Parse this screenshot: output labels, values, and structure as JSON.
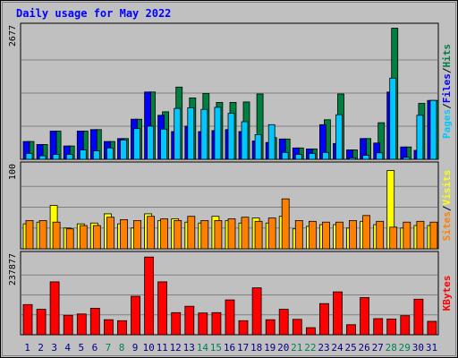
{
  "chart_data": {
    "type": "bar",
    "title": "Daily usage for May 2022",
    "categories": [
      "1",
      "2",
      "3",
      "4",
      "5",
      "6",
      "7",
      "8",
      "9",
      "10",
      "11",
      "12",
      "13",
      "14",
      "15",
      "16",
      "17",
      "18",
      "19",
      "20",
      "21",
      "22",
      "23",
      "24",
      "25",
      "26",
      "27",
      "28",
      "29",
      "30",
      "31"
    ],
    "weekend_days": [
      "7",
      "8",
      "14",
      "15",
      "21",
      "22",
      "28",
      "29"
    ],
    "grid": true,
    "panels": [
      {
        "name": "hits-files-pages",
        "ymax_label": "2677",
        "ylim": [
          0,
          2677
        ],
        "right_labels": [
          "Pages",
          "Files",
          "Hits"
        ],
        "series": [
          {
            "name": "Hits",
            "color": "#008040",
            "values": [
              360,
              300,
              570,
              270,
              570,
              600,
              360,
              420,
              810,
              1360,
              960,
              1460,
              1240,
              1330,
              1150,
              1150,
              1160,
              1320,
              440,
              410,
              230,
              210,
              800,
              1320,
              190,
              420,
              740,
              2650,
              250,
              1130,
              1190
            ]
          },
          {
            "name": "Files",
            "color": "#0000ff",
            "values": [
              360,
              300,
              570,
              270,
              570,
              600,
              360,
              420,
              810,
              1360,
              890,
              560,
              670,
              560,
              580,
              600,
              560,
              370,
              340,
              410,
              230,
              210,
              700,
              320,
              190,
              420,
              330,
              1360,
              250,
              180,
              1190
            ]
          },
          {
            "name": "Pages",
            "color": "#00c8ff",
            "values": [
              120,
              70,
              100,
              100,
              190,
              170,
              230,
              390,
              620,
              670,
              610,
              1030,
              1040,
              1010,
              1050,
              930,
              760,
              500,
              700,
              140,
              100,
              120,
              140,
              900,
              30,
              80,
              130,
              1640,
              40,
              890,
              1190
            ]
          }
        ]
      },
      {
        "name": "visits-sites",
        "ymax_label": "100",
        "ylim": [
          0,
          100
        ],
        "right_labels": [
          "Sites",
          "Visits"
        ],
        "series": [
          {
            "name": "Visits",
            "color": "#ffff00",
            "values": [
              30,
              32,
              52,
              25,
              30,
              31,
              42,
              30,
              25,
              42,
              34,
              36,
              32,
              31,
              39,
              34,
              31,
              37,
              31,
              39,
              24,
              27,
              29,
              29,
              25,
              33,
              29,
              94,
              25,
              28,
              28
            ]
          },
          {
            "name": "Sites",
            "color": "#ff8000",
            "values": [
              34,
              34,
              32,
              24,
              28,
              28,
              38,
              35,
              34,
              39,
              36,
              34,
              39,
              34,
              34,
              36,
              38,
              33,
              37,
              60,
              34,
              33,
              32,
              32,
              34,
              40,
              33,
              26,
              32,
              33,
              32
            ]
          }
        ]
      },
      {
        "name": "kbytes",
        "ymax_label": "237877",
        "ylim": [
          0,
          237877
        ],
        "right_labels": [
          "KBytes"
        ],
        "series": [
          {
            "name": "KBytes",
            "color": "#ff0000",
            "values": [
              90000,
              76000,
              158000,
              58000,
              62000,
              79000,
              45000,
              42000,
              115000,
              232000,
              158000,
              66000,
              85000,
              65000,
              66000,
              104000,
              42000,
              140000,
              45000,
              76000,
              46000,
              21000,
              93000,
              128000,
              30000,
              111000,
              48000,
              47000,
              57000,
              106000,
              40000
            ]
          }
        ]
      }
    ]
  }
}
